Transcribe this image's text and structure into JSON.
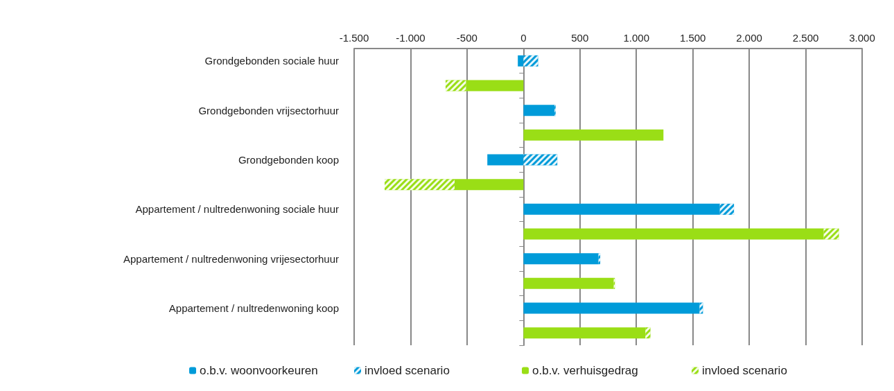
{
  "chart_data": {
    "type": "bar",
    "orientation": "horizontal",
    "stacked": true,
    "categories": [
      "Grondgebonden sociale huur",
      null,
      "Grondgebonden vrijsectorhuur",
      null,
      "Grondgebonden koop",
      null,
      "Appartement / nultredenwoning sociale huur",
      null,
      "Appartement / nultredenwoning vrijesectorhuur",
      null,
      "Appartement / nultredenwoning koop",
      null
    ],
    "series": [
      {
        "name": "o.b.v. woonvoorkeuren",
        "color": "#009bd9",
        "values": [
          -50,
          null,
          275,
          null,
          -320,
          null,
          1740,
          null,
          665,
          null,
          1560,
          null
        ]
      },
      {
        "name": "invloed scenario",
        "color": "#009bd9",
        "values": [
          130,
          null,
          10,
          null,
          300,
          null,
          125,
          null,
          15,
          null,
          30,
          null
        ]
      },
      {
        "name": "o.b.v. verhuisgedrag",
        "color": "#9ade16",
        "values": [
          null,
          -510,
          null,
          1240,
          null,
          -610,
          null,
          2660,
          null,
          800,
          null,
          1080
        ]
      },
      {
        "name": "invloed scenario",
        "color": "#9ade16",
        "values": [
          null,
          -180,
          null,
          null,
          null,
          -620,
          null,
          135,
          null,
          10,
          null,
          45
        ]
      }
    ],
    "xlim": [
      -1500,
      3000
    ],
    "xticks": [
      {
        "value": -1500,
        "label": "-1.500"
      },
      {
        "value": -1000,
        "label": "-1.000"
      },
      -500,
      0,
      500,
      {
        "value": 1000,
        "label": "1.000"
      },
      {
        "value": 1500,
        "label": "1.500"
      },
      {
        "value": 2000,
        "label": "2.000"
      },
      {
        "value": 2500,
        "label": "2.500"
      },
      {
        "value": 3000,
        "label": "3.000"
      }
    ],
    "grid": "x",
    "legend": "bottom"
  }
}
